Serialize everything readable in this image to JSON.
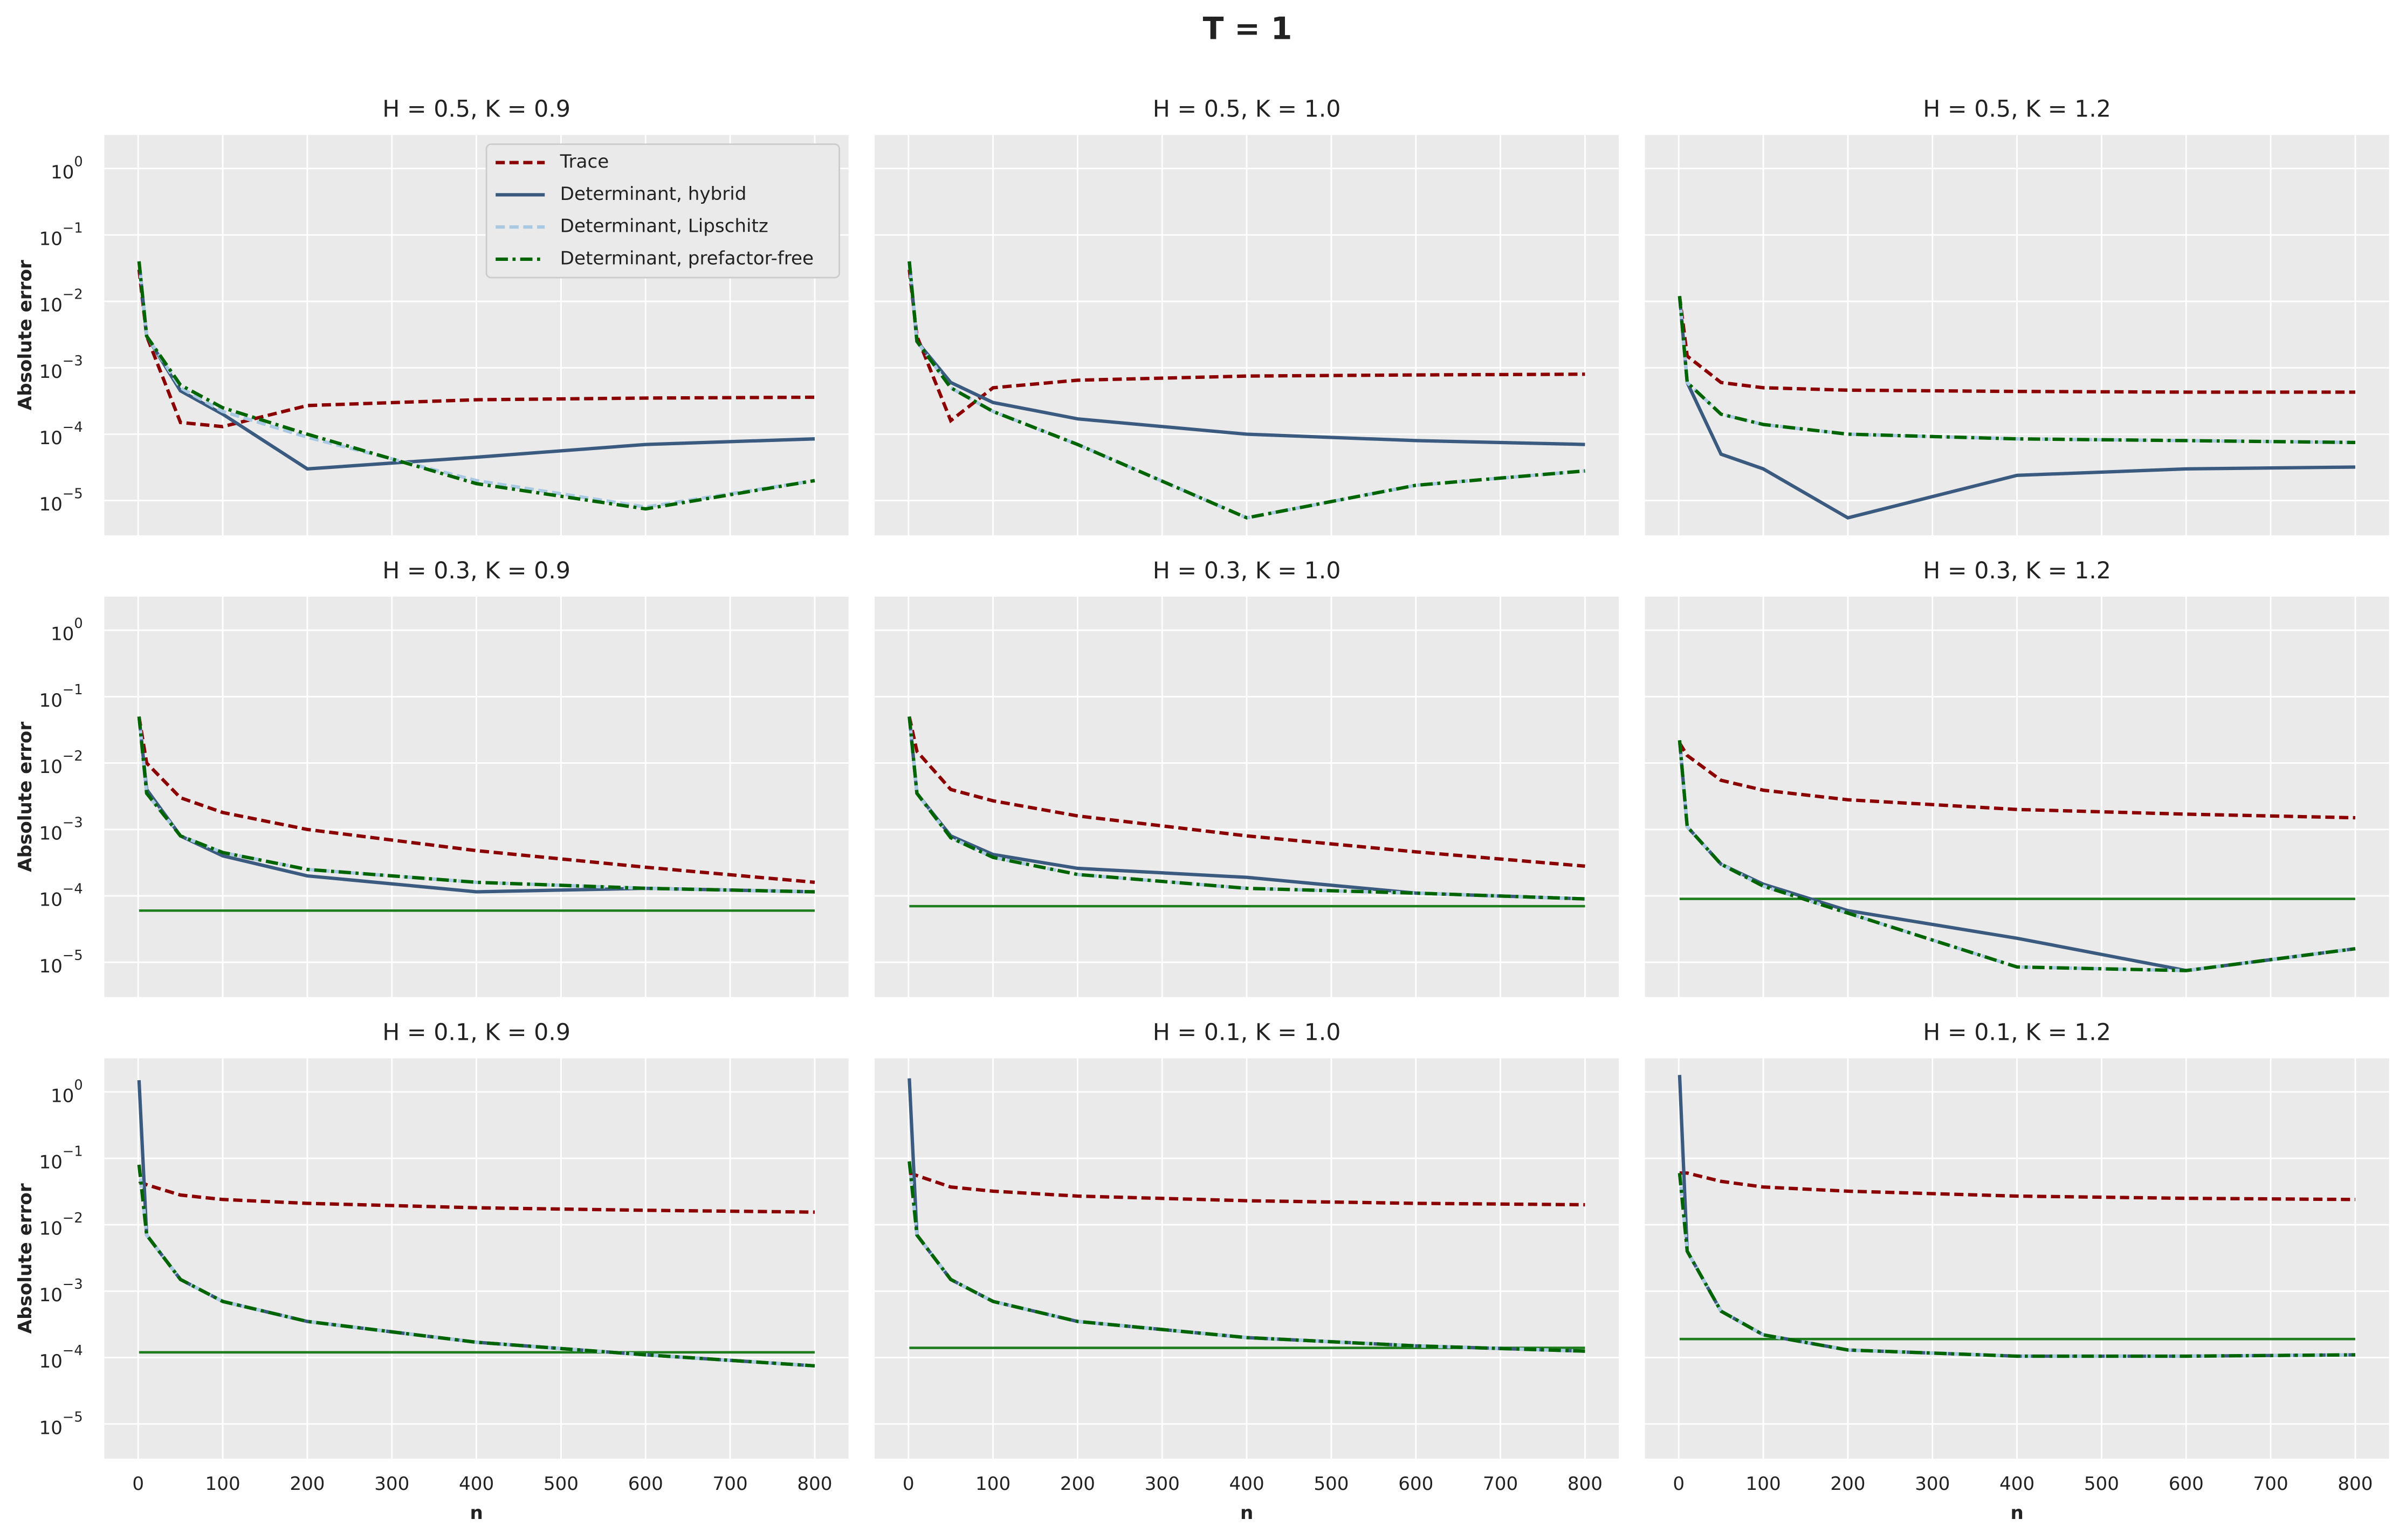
{
  "chart_data": {
    "type": "line",
    "title": "T = 1",
    "xlabel": "n",
    "ylabel": "Absolute error",
    "x": [
      1,
      10,
      50,
      100,
      200,
      400,
      600,
      800
    ],
    "xlim": [
      -40,
      840
    ],
    "xticks": [
      0,
      100,
      200,
      300,
      400,
      500,
      600,
      700,
      800
    ],
    "ylim": [
      3e-06,
      3.2
    ],
    "log_y": true,
    "grid": true,
    "legend": "upper right",
    "yticks": [
      {
        "value": 1e-05,
        "label": "10",
        "exponent": "−5"
      },
      {
        "value": 0.0001,
        "label": "10",
        "exponent": "−4"
      },
      {
        "value": 0.001,
        "label": "10",
        "exponent": "−3"
      },
      {
        "value": 0.01,
        "label": "10",
        "exponent": "−2"
      },
      {
        "value": 0.1,
        "label": "10",
        "exponent": "−1"
      },
      {
        "value": 1,
        "label": "10",
        "exponent": "0"
      }
    ],
    "series": [
      {
        "name": "Trace",
        "color": "#8b0000",
        "dash": "6,3"
      },
      {
        "name": "Determinant, hybrid",
        "color": "#3a5a80",
        "dash": "none"
      },
      {
        "name": "Determinant, Lipschitz",
        "color": "#a9c9e2",
        "dash": "6,3"
      },
      {
        "name": "Determinant, prefactor-free",
        "color": "#006400",
        "dash": "8,3,2,3"
      }
    ],
    "reference_color": "#1e7e1e",
    "panels": [
      {
        "title": "H = 0.5, K = 0.9",
        "reference": null,
        "series": [
          {
            "values": [
              0.03,
              0.003,
              0.00015,
              0.00013,
              0.00027,
              0.00033,
              0.00035,
              0.00036
            ]
          },
          {
            "values": [
              0.04,
              0.003,
              0.00045,
              0.0002,
              3e-05,
              4.5e-05,
              7e-05,
              8.5e-05
            ]
          },
          {
            "values": [
              0.04,
              0.003,
              0.0005,
              0.00022,
              9e-05,
              2e-05,
              8e-06,
              2e-05
            ]
          },
          {
            "values": [
              0.04,
              0.003,
              0.00055,
              0.00025,
              0.0001,
              1.8e-05,
              7.5e-06,
              2e-05
            ]
          }
        ]
      },
      {
        "title": "H = 0.5, K = 1.0",
        "reference": null,
        "series": [
          {
            "values": [
              0.03,
              0.003,
              0.00016,
              0.0005,
              0.00065,
              0.00075,
              0.00078,
              0.0008
            ]
          },
          {
            "values": [
              0.04,
              0.0025,
              0.0006,
              0.0003,
              0.00017,
              0.0001,
              8e-05,
              7e-05
            ]
          },
          {
            "values": [
              0.04,
              0.0025,
              0.0005,
              0.00022,
              7e-05,
              5.5e-06,
              1.7e-05,
              2.8e-05
            ]
          },
          {
            "values": [
              0.04,
              0.0025,
              0.0005,
              0.00022,
              7e-05,
              5.5e-06,
              1.7e-05,
              2.8e-05
            ]
          }
        ]
      },
      {
        "title": "H = 0.5, K = 1.2",
        "reference": null,
        "series": [
          {
            "values": [
              0.012,
              0.0015,
              0.0006,
              0.0005,
              0.00046,
              0.00044,
              0.00043,
              0.00043
            ]
          },
          {
            "values": [
              0.012,
              0.0006,
              5e-05,
              3e-05,
              5.5e-06,
              2.4e-05,
              3e-05,
              3.2e-05
            ]
          },
          {
            "values": [
              0.012,
              0.0006,
              0.0002,
              0.00014,
              0.0001,
              8.5e-05,
              8e-05,
              7.5e-05
            ]
          },
          {
            "values": [
              0.012,
              0.0006,
              0.0002,
              0.00014,
              0.0001,
              8.5e-05,
              8e-05,
              7.5e-05
            ]
          }
        ]
      },
      {
        "title": "H = 0.3, K = 0.9",
        "reference": 6e-05,
        "series": [
          {
            "values": [
              0.05,
              0.01,
              0.003,
              0.0018,
              0.001,
              0.00048,
              0.00027,
              0.00016
            ]
          },
          {
            "values": [
              0.05,
              0.004,
              0.0008,
              0.0004,
              0.0002,
              0.000115,
              0.00013,
              0.000115
            ]
          },
          {
            "values": [
              0.05,
              0.0035,
              0.0008,
              0.00045,
              0.00025,
              0.00016,
              0.00013,
              0.000115
            ]
          },
          {
            "values": [
              0.05,
              0.0035,
              0.0008,
              0.00045,
              0.00025,
              0.00016,
              0.00013,
              0.000115
            ]
          }
        ]
      },
      {
        "title": "H = 0.3, K = 1.0",
        "reference": 7e-05,
        "series": [
          {
            "values": [
              0.05,
              0.015,
              0.004,
              0.0027,
              0.0016,
              0.0008,
              0.00046,
              0.00028
            ]
          },
          {
            "values": [
              0.05,
              0.0035,
              0.0008,
              0.00042,
              0.00026,
              0.00019,
              0.00011,
              9e-05
            ]
          },
          {
            "values": [
              0.05,
              0.0035,
              0.00075,
              0.00038,
              0.00021,
              0.00013,
              0.00011,
              9e-05
            ]
          },
          {
            "values": [
              0.05,
              0.0035,
              0.00075,
              0.00038,
              0.00021,
              0.00013,
              0.00011,
              9e-05
            ]
          }
        ]
      },
      {
        "title": "H = 0.3, K = 1.2",
        "reference": 9e-05,
        "series": [
          {
            "values": [
              0.02,
              0.013,
              0.0055,
              0.0039,
              0.0028,
              0.002,
              0.0017,
              0.0015
            ]
          },
          {
            "values": [
              0.022,
              0.0011,
              0.0003,
              0.00015,
              6e-05,
              2.3e-05,
              7.5e-06,
              1.6e-05
            ]
          },
          {
            "values": [
              0.022,
              0.0011,
              0.0003,
              0.00014,
              5.5e-05,
              8.5e-06,
              7.5e-06,
              1.6e-05
            ]
          },
          {
            "values": [
              0.022,
              0.0011,
              0.0003,
              0.00014,
              5.5e-05,
              8.5e-06,
              7.5e-06,
              1.6e-05
            ]
          }
        ]
      },
      {
        "title": "H = 0.1, K = 0.9",
        "reference": 0.00012,
        "series": [
          {
            "values": [
              0.045,
              0.04,
              0.028,
              0.024,
              0.021,
              0.018,
              0.0165,
              0.0155
            ]
          },
          {
            "values": [
              1.5,
              0.007,
              0.0015,
              0.0007,
              0.00035,
              0.00017,
              0.00011,
              7.5e-05
            ]
          },
          {
            "values": [
              0.08,
              0.007,
              0.0015,
              0.0007,
              0.00035,
              0.00017,
              0.00011,
              7.5e-05
            ]
          },
          {
            "values": [
              0.08,
              0.007,
              0.0015,
              0.0007,
              0.00035,
              0.00017,
              0.00011,
              7.5e-05
            ]
          }
        ]
      },
      {
        "title": "H = 0.1, K = 1.0",
        "reference": 0.00014,
        "series": [
          {
            "values": [
              0.06,
              0.055,
              0.037,
              0.032,
              0.027,
              0.023,
              0.021,
              0.02
            ]
          },
          {
            "values": [
              1.6,
              0.007,
              0.0015,
              0.0007,
              0.00035,
              0.0002,
              0.00015,
              0.000125
            ]
          },
          {
            "values": [
              0.09,
              0.007,
              0.0015,
              0.0007,
              0.00035,
              0.0002,
              0.00015,
              0.000125
            ]
          },
          {
            "values": [
              0.09,
              0.007,
              0.0015,
              0.0007,
              0.00035,
              0.0002,
              0.00015,
              0.000125
            ]
          }
        ]
      },
      {
        "title": "H = 0.1, K = 1.2",
        "reference": 0.00019,
        "series": [
          {
            "values": [
              0.06,
              0.06,
              0.045,
              0.037,
              0.032,
              0.027,
              0.025,
              0.024
            ]
          },
          {
            "values": [
              1.8,
              0.004,
              0.0005,
              0.00022,
              0.00013,
              0.000105,
              0.000105,
              0.00011
            ]
          },
          {
            "values": [
              0.06,
              0.004,
              0.0005,
              0.00022,
              0.00013,
              0.000105,
              0.000105,
              0.00011
            ]
          },
          {
            "values": [
              0.06,
              0.004,
              0.0005,
              0.00022,
              0.00013,
              0.000105,
              0.000105,
              0.00011
            ]
          }
        ]
      }
    ]
  }
}
